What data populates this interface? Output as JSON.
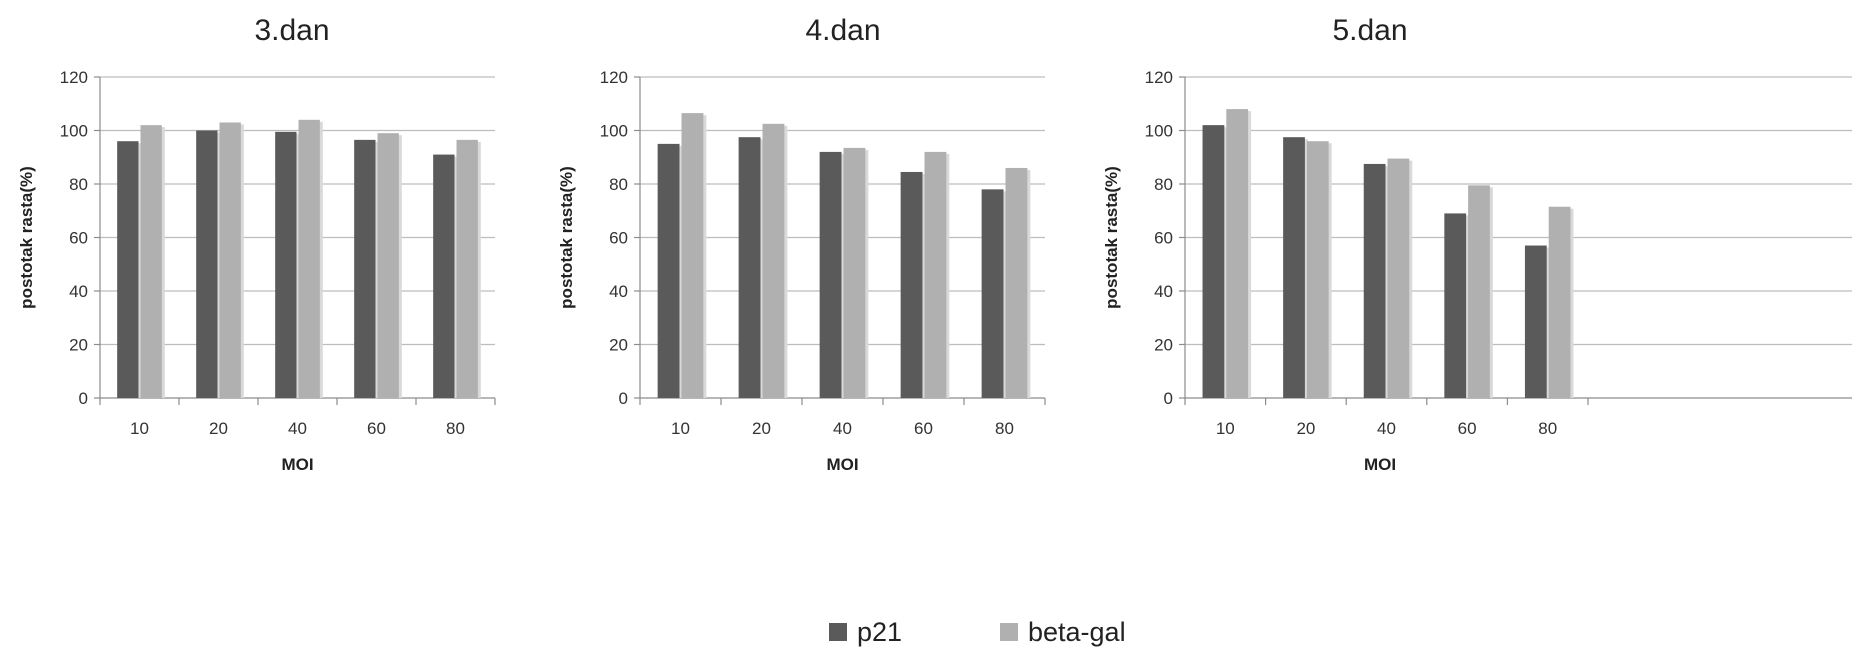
{
  "legend": {
    "items": [
      {
        "label": "p21",
        "color": "#5a5a5a"
      },
      {
        "label": "beta-gal",
        "color": "#b0b0b0"
      }
    ]
  },
  "chart_data": [
    {
      "type": "bar",
      "title": "3.dan",
      "xlabel": "MOI",
      "ylabel": "postotak rasta(%)",
      "categories": [
        "10",
        "20",
        "40",
        "60",
        "80"
      ],
      "ylim": [
        0,
        120
      ],
      "yticks": [
        0,
        20,
        40,
        60,
        80,
        100,
        120
      ],
      "grid": true,
      "series": [
        {
          "name": "p21",
          "color": "#5a5a5a",
          "values": [
            96,
            100,
            99.5,
            96.5,
            91
          ]
        },
        {
          "name": "beta-gal",
          "color": "#b0b0b0",
          "values": [
            102,
            103,
            104,
            99,
            96.5
          ]
        }
      ]
    },
    {
      "type": "bar",
      "title": "4.dan",
      "xlabel": "MOI",
      "ylabel": "postotak rasta(%)",
      "categories": [
        "10",
        "20",
        "40",
        "60",
        "80"
      ],
      "ylim": [
        0,
        120
      ],
      "yticks": [
        0,
        20,
        40,
        60,
        80,
        100,
        120
      ],
      "grid": true,
      "series": [
        {
          "name": "p21",
          "color": "#5a5a5a",
          "values": [
            95,
            97.5,
            92,
            84.5,
            78
          ]
        },
        {
          "name": "beta-gal",
          "color": "#b0b0b0",
          "values": [
            106.5,
            102.5,
            93.5,
            92,
            86
          ]
        }
      ]
    },
    {
      "type": "bar",
      "title": "5.dan",
      "xlabel": "MOI",
      "ylabel": "postotak rasta(%)",
      "categories": [
        "10",
        "20",
        "40",
        "60",
        "80"
      ],
      "ylim": [
        0,
        120
      ],
      "yticks": [
        0,
        20,
        40,
        60,
        80,
        100,
        120
      ],
      "grid": true,
      "series": [
        {
          "name": "p21",
          "color": "#5a5a5a",
          "values": [
            102,
            97.5,
            87.5,
            69,
            57
          ]
        },
        {
          "name": "beta-gal",
          "color": "#b0b0b0",
          "values": [
            108,
            96,
            89.5,
            79.5,
            71.5
          ]
        }
      ]
    }
  ]
}
